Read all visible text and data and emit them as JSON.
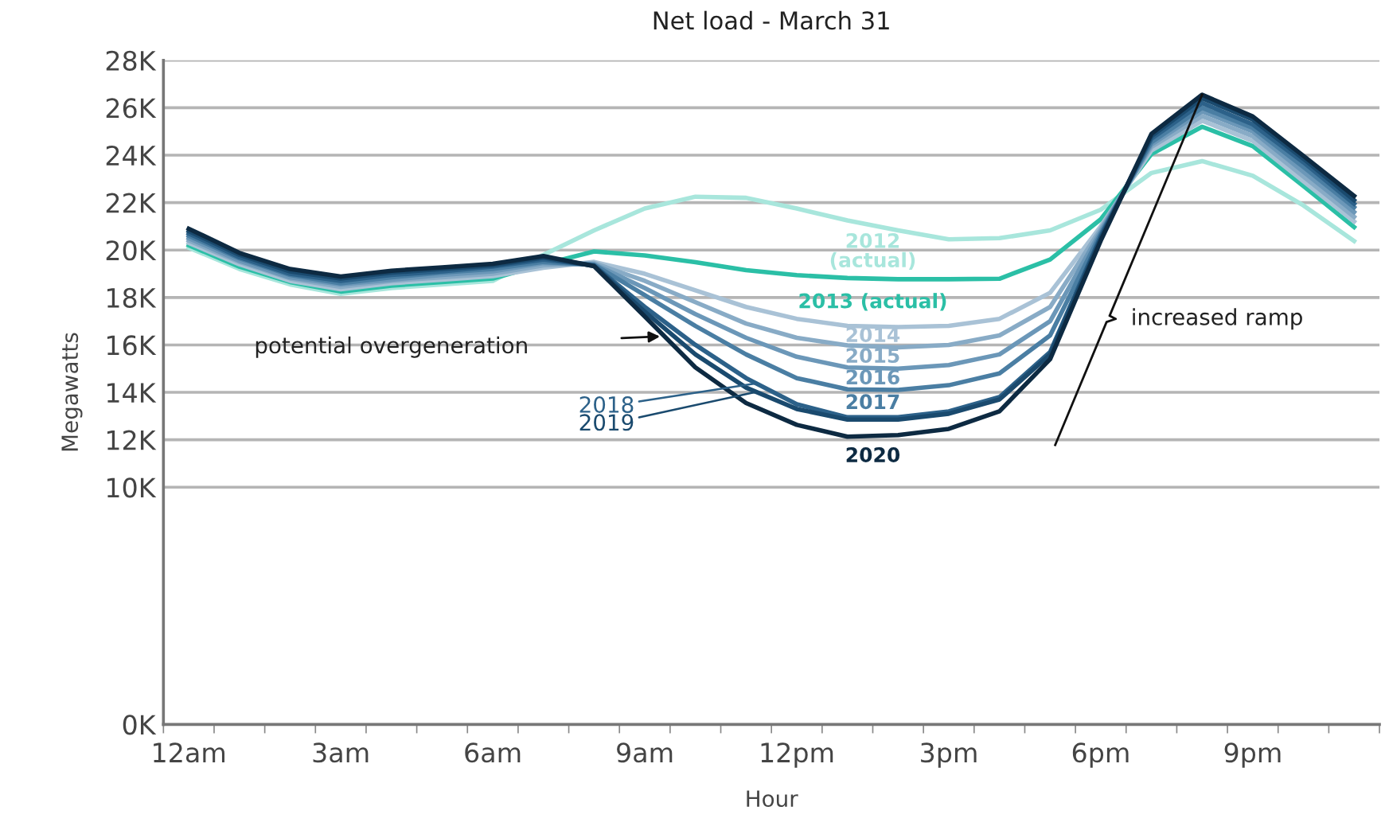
{
  "chart_data": {
    "type": "line",
    "title": "Net load - March 31",
    "xlabel": "Hour",
    "ylabel": "Megawatts",
    "categories": [
      "12am",
      null,
      null,
      "3am",
      null,
      null,
      "6am",
      null,
      null,
      "9am",
      null,
      null,
      "12pm",
      null,
      null,
      "3pm",
      null,
      null,
      "6pm",
      null,
      null,
      "9pm",
      null,
      null
    ],
    "ylim": [
      0,
      28000
    ],
    "yticks": [
      {
        "value": 0,
        "label": "0K"
      },
      {
        "value": 10000,
        "label": "10K"
      },
      {
        "value": 12000,
        "label": "12K"
      },
      {
        "value": 14000,
        "label": "14K"
      },
      {
        "value": 16000,
        "label": "16K"
      },
      {
        "value": 18000,
        "label": "18K"
      },
      {
        "value": 20000,
        "label": "20K"
      },
      {
        "value": 22000,
        "label": "22K"
      },
      {
        "value": 24000,
        "label": "24K"
      },
      {
        "value": 26000,
        "label": "26K"
      },
      {
        "value": 28000,
        "label": "28K"
      }
    ],
    "grid": "y",
    "legend": false,
    "marker": "none",
    "line_style": "solid",
    "annotations": [
      "potential overgeneration",
      "increased ramp"
    ],
    "series": [
      {
        "name": "2012\n(actual)",
        "color": "#a8e6dc",
        "values": [
          20100,
          19200,
          18550,
          18150,
          18400,
          18550,
          18700,
          19800,
          20830,
          21750,
          22250,
          22200,
          21750,
          21250,
          20830,
          20450,
          20500,
          20830,
          21700,
          23250,
          23750,
          23130,
          21880,
          20380
        ]
      },
      {
        "name": "2013 (actual)",
        "color": "#2bbfa6",
        "values": [
          20200,
          19300,
          18650,
          18250,
          18500,
          18650,
          18800,
          19400,
          19940,
          19770,
          19490,
          19150,
          18940,
          18820,
          18770,
          18770,
          18790,
          19600,
          21300,
          24050,
          25200,
          24380,
          22700,
          20970
        ]
      },
      {
        "name": "2014",
        "color": "#a9c2d6",
        "values": [
          20300,
          19400,
          18700,
          18350,
          18600,
          18750,
          18900,
          19250,
          19500,
          19000,
          18300,
          17600,
          17100,
          16800,
          16750,
          16800,
          17100,
          18200,
          21000,
          24200,
          25450,
          24600,
          22900,
          21200
        ]
      },
      {
        "name": "2015",
        "color": "#88abc6",
        "values": [
          20400,
          19500,
          18800,
          18450,
          18700,
          18850,
          19000,
          19350,
          19450,
          18700,
          17800,
          16900,
          16300,
          15980,
          15900,
          16000,
          16400,
          17600,
          20900,
          24350,
          25650,
          24800,
          23100,
          21400
        ]
      },
      {
        "name": "2016",
        "color": "#6b97b8",
        "values": [
          20500,
          19550,
          18850,
          18550,
          18750,
          18950,
          19100,
          19450,
          19400,
          18400,
          17300,
          16300,
          15500,
          15050,
          15000,
          15150,
          15600,
          17000,
          20800,
          24450,
          25850,
          25000,
          23300,
          21600
        ]
      },
      {
        "name": "2017",
        "color": "#4a7ea3",
        "values": [
          20600,
          19650,
          18950,
          18600,
          18850,
          19050,
          19200,
          19500,
          19380,
          18100,
          16800,
          15600,
          14600,
          14130,
          14100,
          14300,
          14800,
          16400,
          20700,
          24550,
          26000,
          25150,
          23500,
          21800
        ]
      },
      {
        "name": "2018",
        "color": "#2c6189",
        "values": [
          20700,
          19700,
          19000,
          18700,
          18950,
          19100,
          19300,
          19600,
          19350,
          17600,
          16000,
          14600,
          13500,
          12950,
          12950,
          13200,
          13800,
          15700,
          20600,
          24700,
          26200,
          25300,
          23700,
          21950
        ]
      },
      {
        "name": "2019",
        "color": "#1a4a6e",
        "values": [
          20800,
          19800,
          19100,
          18800,
          19050,
          19200,
          19350,
          19680,
          19330,
          17400,
          15600,
          14200,
          13300,
          12850,
          12850,
          13100,
          13700,
          15600,
          20500,
          24800,
          26400,
          25500,
          23850,
          22100
        ]
      },
      {
        "name": "2020",
        "color": "#0d2a42",
        "values": [
          20900,
          19880,
          19200,
          18880,
          19130,
          19270,
          19420,
          19750,
          19320,
          17200,
          15050,
          13550,
          12630,
          12130,
          12200,
          12460,
          13200,
          15400,
          20400,
          24900,
          26550,
          25630,
          23970,
          22280
        ]
      }
    ]
  }
}
